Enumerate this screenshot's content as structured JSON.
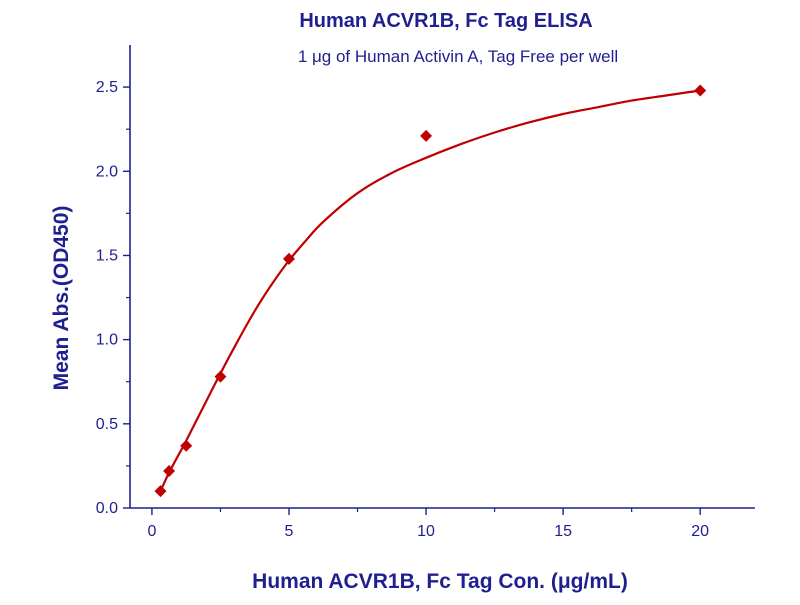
{
  "chart_data": {
    "type": "scatter",
    "title": "Human ACVR1B, Fc Tag ELISA",
    "subtitle": "1 μg of Human Activin A, Tag Free per well",
    "xlabel": "Human ACVR1B, Fc Tag Con. (μg/mL)",
    "ylabel": "Mean Abs.(OD450)",
    "xlim": [
      -0.8,
      22
    ],
    "ylim": [
      0,
      2.75
    ],
    "x_ticks": [
      0,
      5,
      10,
      15,
      20
    ],
    "x_tick_labels": [
      "0",
      "5",
      "10",
      "15",
      "20"
    ],
    "y_ticks": [
      0.0,
      0.5,
      1.0,
      1.5,
      2.0,
      2.5
    ],
    "y_tick_labels": [
      "0.0",
      "0.5",
      "1.0",
      "1.5",
      "2.0",
      "2.5"
    ],
    "grid": false,
    "legend": "none",
    "series": [
      {
        "marker": "diamond",
        "x": [
          0.3125,
          0.625,
          1.25,
          2.5,
          5,
          10,
          20
        ],
        "y": [
          0.1,
          0.22,
          0.37,
          0.78,
          1.48,
          2.21,
          2.48
        ]
      }
    ],
    "fit_curve": {
      "x": [
        0.3125,
        0.625,
        1.25,
        1.875,
        2.5,
        3.125,
        3.75,
        4.375,
        5,
        5.625,
        6.25,
        7.5,
        8.75,
        10,
        11.25,
        12.5,
        13.75,
        15,
        16.25,
        17.5,
        18.75,
        20
      ],
      "y": [
        0.1,
        0.21,
        0.4,
        0.6,
        0.8,
        0.99,
        1.17,
        1.33,
        1.47,
        1.59,
        1.7,
        1.87,
        1.99,
        2.08,
        2.16,
        2.23,
        2.29,
        2.34,
        2.38,
        2.42,
        2.45,
        2.48
      ]
    },
    "colors": {
      "text": "#1f1f8f",
      "axis": "#1f1f8f",
      "series": "#c00000"
    }
  }
}
